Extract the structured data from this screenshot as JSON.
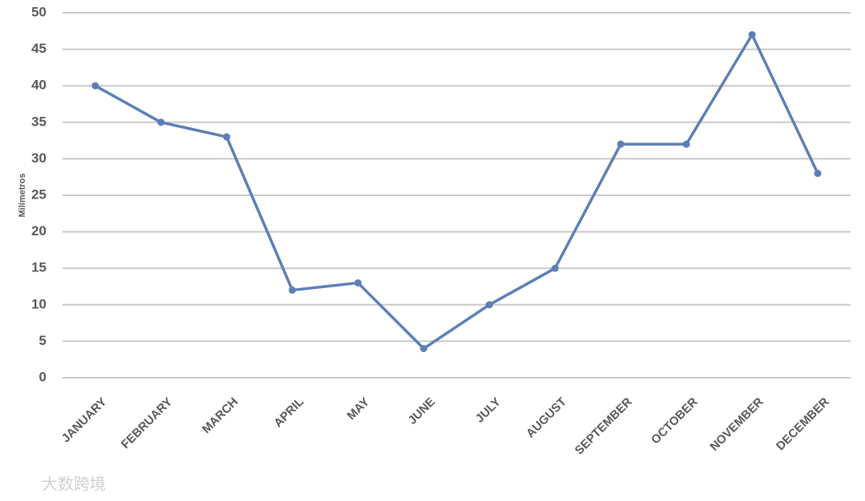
{
  "chart_data": {
    "type": "line",
    "y_label": "Milímetros",
    "categories": [
      "JANUARY",
      "FEBRUARY",
      "MARCH",
      "APRIL",
      "MAY",
      "JUNE",
      "JULY",
      "AUGUST",
      "SEPTEMBER",
      "OCTOBER",
      "NOVEMBER",
      "DECEMBER"
    ],
    "values": [
      40,
      35,
      33,
      12,
      13,
      4,
      10,
      15,
      32,
      32,
      47,
      28
    ],
    "color": "#5b7fb6",
    "ylim": [
      0,
      50
    ],
    "yticks": [
      0,
      5,
      10,
      15,
      20,
      25,
      30,
      35,
      40,
      45,
      50
    ],
    "grid": true
  },
  "watermark": "大数跨境"
}
